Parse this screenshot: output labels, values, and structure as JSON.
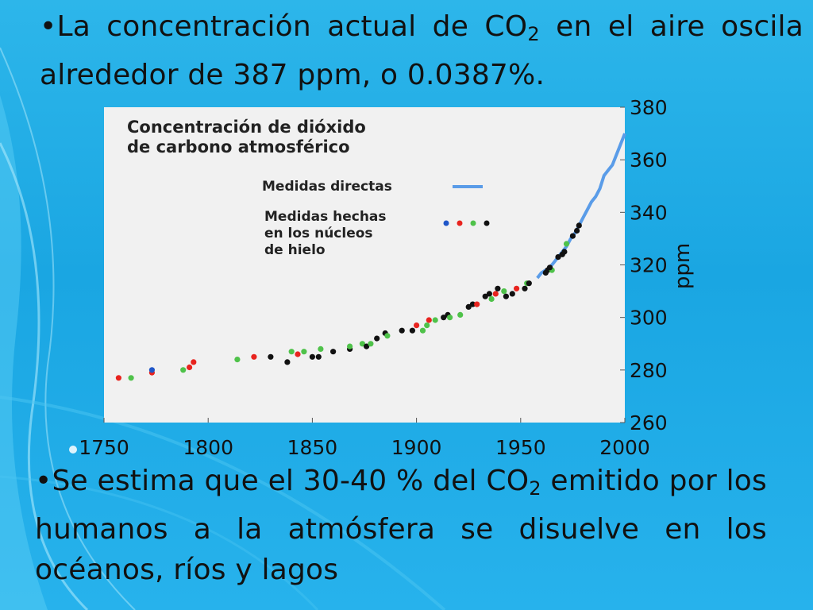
{
  "bullets": {
    "first": {
      "marker": "•",
      "text_a": "La concentración actual de CO",
      "sub": "2",
      "text_b": " en el aire oscila alrededor de 387 ppm, o 0.0387%."
    },
    "second": {
      "marker": "•",
      "text_a": "Se estima que el 30-40 % del CO",
      "sub": "2",
      "text_b": " emitido por los humanos a la atmósfera se disuelve en los océanos, ríos y lagos"
    }
  },
  "colors": {
    "direct": "#5a9ce8",
    "core_blue": "#1f56c8",
    "core_red": "#e8231e",
    "core_green": "#4fc24a",
    "core_black": "#111111",
    "plot_bg": "#f1f1f1"
  },
  "chart_data": {
    "type": "scatter",
    "title_line1": "Concentración de dióxido",
    "title_line2": "de carbono atmosférico",
    "xlabel": "",
    "ylabel": "ppm",
    "xlim": [
      1750,
      2000
    ],
    "ylim": [
      260,
      380
    ],
    "xticks": [
      "1750",
      "1800",
      "1850",
      "1900",
      "1950",
      "2000"
    ],
    "yticks": [
      "260",
      "280",
      "300",
      "320",
      "340",
      "360",
      "380"
    ],
    "legend": {
      "direct_label": "Medidas directas",
      "ice_line1": "Medidas hechas",
      "ice_line2": "en los núcleos",
      "ice_line3": "de hielo",
      "placement": "top-left"
    },
    "series": [
      {
        "name": "Medidas directas",
        "kind": "line",
        "x": [
          1958,
          1960,
          1962,
          1964,
          1966,
          1968,
          1970,
          1972,
          1974,
          1976,
          1978,
          1980,
          1982,
          1984,
          1986,
          1988,
          1990,
          1992,
          1994,
          1996,
          1998,
          2000
        ],
        "y": [
          315,
          317,
          318,
          319,
          321,
          323,
          325,
          327,
          330,
          332,
          335,
          338,
          341,
          344,
          346,
          349,
          354,
          356,
          358,
          362,
          366,
          370
        ]
      },
      {
        "name": "Medidas hechas en los núcleos de hielo",
        "kind": "scatter",
        "points": [
          [
            1757,
            277,
            "red"
          ],
          [
            1763,
            277,
            "green"
          ],
          [
            1773,
            279,
            "red"
          ],
          [
            1773,
            280,
            "blue"
          ],
          [
            1788,
            280,
            "green"
          ],
          [
            1791,
            281,
            "red"
          ],
          [
            1793,
            283,
            "red"
          ],
          [
            1814,
            284,
            "green"
          ],
          [
            1822,
            285,
            "red"
          ],
          [
            1830,
            285,
            "black"
          ],
          [
            1838,
            283,
            "black"
          ],
          [
            1840,
            287,
            "green"
          ],
          [
            1843,
            286,
            "red"
          ],
          [
            1846,
            287,
            "green"
          ],
          [
            1850,
            285,
            "black"
          ],
          [
            1853,
            285,
            "black"
          ],
          [
            1854,
            288,
            "green"
          ],
          [
            1860,
            287,
            "black"
          ],
          [
            1868,
            288,
            "black"
          ],
          [
            1868,
            289,
            "green"
          ],
          [
            1874,
            290,
            "green"
          ],
          [
            1876,
            289,
            "black"
          ],
          [
            1878,
            290,
            "green"
          ],
          [
            1881,
            292,
            "black"
          ],
          [
            1885,
            294,
            "black"
          ],
          [
            1886,
            293,
            "green"
          ],
          [
            1893,
            295,
            "black"
          ],
          [
            1898,
            295,
            "black"
          ],
          [
            1900,
            297,
            "red"
          ],
          [
            1903,
            295,
            "green"
          ],
          [
            1905,
            297,
            "green"
          ],
          [
            1906,
            299,
            "red"
          ],
          [
            1909,
            299,
            "green"
          ],
          [
            1913,
            300,
            "black"
          ],
          [
            1915,
            301,
            "black"
          ],
          [
            1916,
            300,
            "green"
          ],
          [
            1921,
            301,
            "green"
          ],
          [
            1925,
            304,
            "black"
          ],
          [
            1927,
            305,
            "black"
          ],
          [
            1929,
            305,
            "red"
          ],
          [
            1933,
            308,
            "black"
          ],
          [
            1935,
            309,
            "black"
          ],
          [
            1936,
            307,
            "green"
          ],
          [
            1938,
            309,
            "red"
          ],
          [
            1939,
            311,
            "black"
          ],
          [
            1942,
            310,
            "green"
          ],
          [
            1943,
            308,
            "black"
          ],
          [
            1946,
            309,
            "black"
          ],
          [
            1948,
            311,
            "red"
          ],
          [
            1952,
            311,
            "black"
          ],
          [
            1953,
            313,
            "green"
          ],
          [
            1954,
            313,
            "black"
          ],
          [
            1962,
            317,
            "black"
          ],
          [
            1963,
            318,
            "black"
          ],
          [
            1965,
            318,
            "green"
          ],
          [
            1964,
            319,
            "black"
          ],
          [
            1968,
            323,
            "black"
          ],
          [
            1970,
            324,
            "black"
          ],
          [
            1971,
            325,
            "black"
          ],
          [
            1972,
            328,
            "green"
          ],
          [
            1975,
            331,
            "black"
          ],
          [
            1977,
            333,
            "black"
          ],
          [
            1978,
            335,
            "black"
          ]
        ]
      }
    ]
  }
}
